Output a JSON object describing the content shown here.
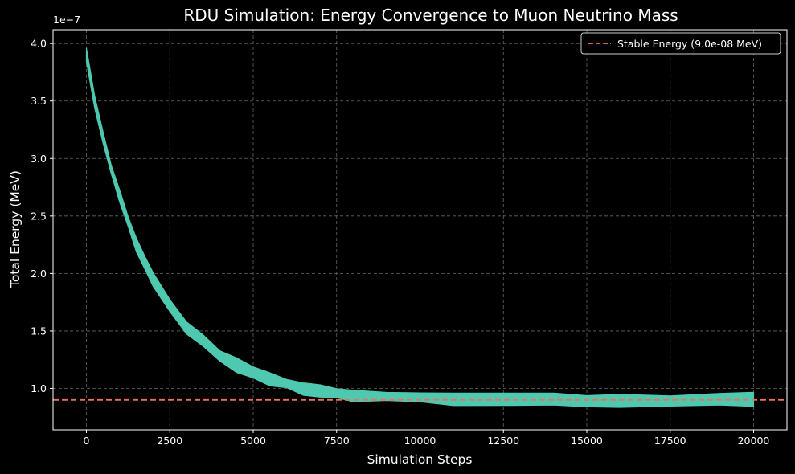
{
  "chart_data": {
    "type": "line",
    "title": "RDU Simulation: Energy Convergence to Muon Neutrino Mass",
    "xlabel": "Simulation Steps",
    "ylabel": "Total Energy (MeV)",
    "y_offset_text": "1e−7",
    "xlim": [
      -1000,
      21000
    ],
    "ylim": [
      6.4e-08,
      4.12e-07
    ],
    "x_ticks": [
      0,
      2500,
      5000,
      7500,
      10000,
      12500,
      15000,
      17500,
      20000
    ],
    "x_tick_labels": [
      "0",
      "2500",
      "5000",
      "7500",
      "10000",
      "12500",
      "15000",
      "17500",
      "20000"
    ],
    "y_ticks": [
      1e-07,
      1.5e-07,
      2e-07,
      2.5e-07,
      3e-07,
      3.5e-07,
      4e-07
    ],
    "y_tick_labels": [
      "1.0",
      "1.5",
      "2.0",
      "2.5",
      "3.0",
      "3.5",
      "4.0"
    ],
    "grid": true,
    "legend_position": "top-right",
    "series": [
      {
        "color": "#4ec9b0",
        "x": [
          0,
          250,
          500,
          750,
          1000,
          1250,
          1500,
          1750,
          2000,
          2500,
          3000,
          3500,
          4000,
          4500,
          5000,
          5500,
          6000,
          6500,
          7000,
          7500,
          8000,
          9000,
          10000,
          11000,
          12500,
          14000,
          15000,
          16000,
          17500,
          19000,
          20000
        ],
        "y": [
          3.9e-07,
          3.5e-07,
          3.18e-07,
          2.9e-07,
          2.67e-07,
          2.45e-07,
          2.25e-07,
          2.1e-07,
          1.95e-07,
          1.72e-07,
          1.54e-07,
          1.4e-07,
          1.29e-07,
          1.2e-07,
          1.14e-07,
          1.08e-07,
          1.04e-07,
          1e-07,
          9.8e-08,
          9.6e-08,
          9.4e-08,
          9.3e-08,
          9.2e-08,
          9.1e-08,
          9.05e-08,
          9e-08,
          9e-08,
          9e-08,
          9e-08,
          9e-08,
          9e-08
        ],
        "band": [
          1.2e-08,
          1.1e-08,
          1e-08,
          1e-08,
          1e-08,
          1e-08,
          1e-08,
          1e-08,
          1e-08,
          1e-08,
          1e-08,
          1e-08,
          1e-08,
          1e-08,
          1e-08,
          1e-08,
          1e-08,
          1e-08,
          1e-08,
          1e-08,
          1e-08,
          1e-08,
          1e-08,
          1e-08,
          1e-08,
          1e-08,
          1e-08,
          1e-08,
          1e-08,
          1e-08,
          1e-08
        ]
      },
      {
        "name": "Stable Energy (9.0e-08 MeV)",
        "type": "hline",
        "y": 9e-08,
        "color": "#e8735a",
        "style": "dashed"
      }
    ]
  }
}
